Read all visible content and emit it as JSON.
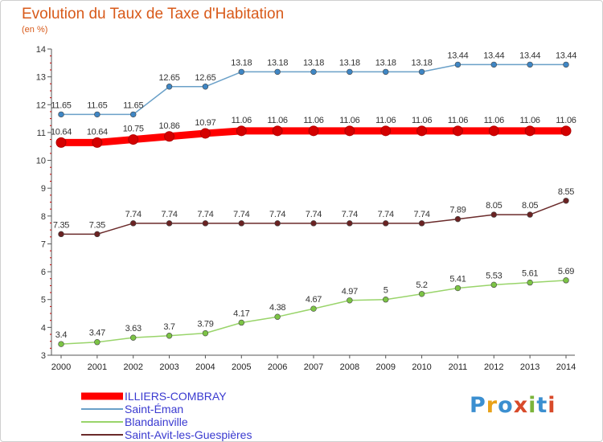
{
  "header": {
    "title": "Evolution du Taux de Taxe d'Habitation",
    "subtitle": "(en %)"
  },
  "logo": {
    "letters": [
      {
        "char": "P",
        "color": "#3b8fd0"
      },
      {
        "char": "r",
        "color": "#e8a21a"
      },
      {
        "char": "o",
        "color": "#3b8fd0"
      },
      {
        "char": "x",
        "color": "#d84a2a"
      },
      {
        "char": "i",
        "color": "#7bb43a"
      },
      {
        "char": "t",
        "color": "#3b8fd0"
      },
      {
        "char": "i",
        "color": "#d84a2a"
      }
    ]
  },
  "chart_data": {
    "type": "line",
    "title": "Evolution du Taux de Taxe d'Habitation",
    "ylabel": "(en %)",
    "xlabel": "",
    "x": [
      "2000",
      "2001",
      "2002",
      "2003",
      "2004",
      "2005",
      "2006",
      "2007",
      "2008",
      "2009",
      "2010",
      "2011",
      "2012",
      "2013",
      "2014"
    ],
    "ylim": [
      3,
      14
    ],
    "yticks": [
      "3",
      "4",
      "5",
      "6",
      "7",
      "8",
      "9",
      "10",
      "11",
      "12",
      "13",
      "14"
    ],
    "grid": false,
    "legend_position": "bottom-left",
    "series": [
      {
        "name": "ILLIERS-COMBRAY",
        "color": "#ff0000",
        "marker_color": "#d40000",
        "width": 9,
        "labels": [
          "10.64",
          "10.64",
          "10.75",
          "10.86",
          "10.97",
          "11.06",
          "11.06",
          "11.06",
          "11.06",
          "11.06",
          "11.06",
          "11.06",
          "11.06",
          "11.06",
          "11.06"
        ],
        "values": [
          10.64,
          10.64,
          10.75,
          10.86,
          10.97,
          11.06,
          11.06,
          11.06,
          11.06,
          11.06,
          11.06,
          11.06,
          11.06,
          11.06,
          11.06
        ]
      },
      {
        "name": "Saint-Éman",
        "color": "#6aa0c8",
        "marker_color": "#3f86c4",
        "width": 1.5,
        "labels": [
          "11.65",
          "11.65",
          "11.65",
          "12.65",
          "12.65",
          "13.18",
          "13.18",
          "13.18",
          "13.18",
          "13.18",
          "13.18",
          "13.44",
          "13.44",
          "13.44",
          "13.44"
        ],
        "values": [
          11.65,
          11.65,
          11.65,
          12.65,
          12.65,
          13.18,
          13.18,
          13.18,
          13.18,
          13.18,
          13.18,
          13.44,
          13.44,
          13.44,
          13.44
        ]
      },
      {
        "name": "Blandainville",
        "color": "#99d46a",
        "marker_color": "#7cc445",
        "width": 1.5,
        "labels": [
          "3.4",
          "3.47",
          "3.63",
          "3.7",
          "3.79",
          "4.17",
          "4.38",
          "4.67",
          "4.97",
          "5",
          "5.2",
          "5.41",
          "5.53",
          "5.61",
          "5.69"
        ],
        "values": [
          3.4,
          3.47,
          3.63,
          3.7,
          3.79,
          4.17,
          4.38,
          4.67,
          4.97,
          5,
          5.2,
          5.41,
          5.53,
          5.61,
          5.69
        ]
      },
      {
        "name": "Saint-Avit-les-Guespières",
        "color": "#6a2a2a",
        "marker_color": "#6a2222",
        "width": 1.5,
        "labels": [
          "7.35",
          "7.35",
          "7.74",
          "7.74",
          "7.74",
          "7.74",
          "7.74",
          "7.74",
          "7.74",
          "7.74",
          "7.74",
          "7.89",
          "8.05",
          "8.05",
          "8.55"
        ],
        "values": [
          7.35,
          7.35,
          7.74,
          7.74,
          7.74,
          7.74,
          7.74,
          7.74,
          7.74,
          7.74,
          7.74,
          7.89,
          8.05,
          8.05,
          8.55
        ]
      }
    ]
  }
}
